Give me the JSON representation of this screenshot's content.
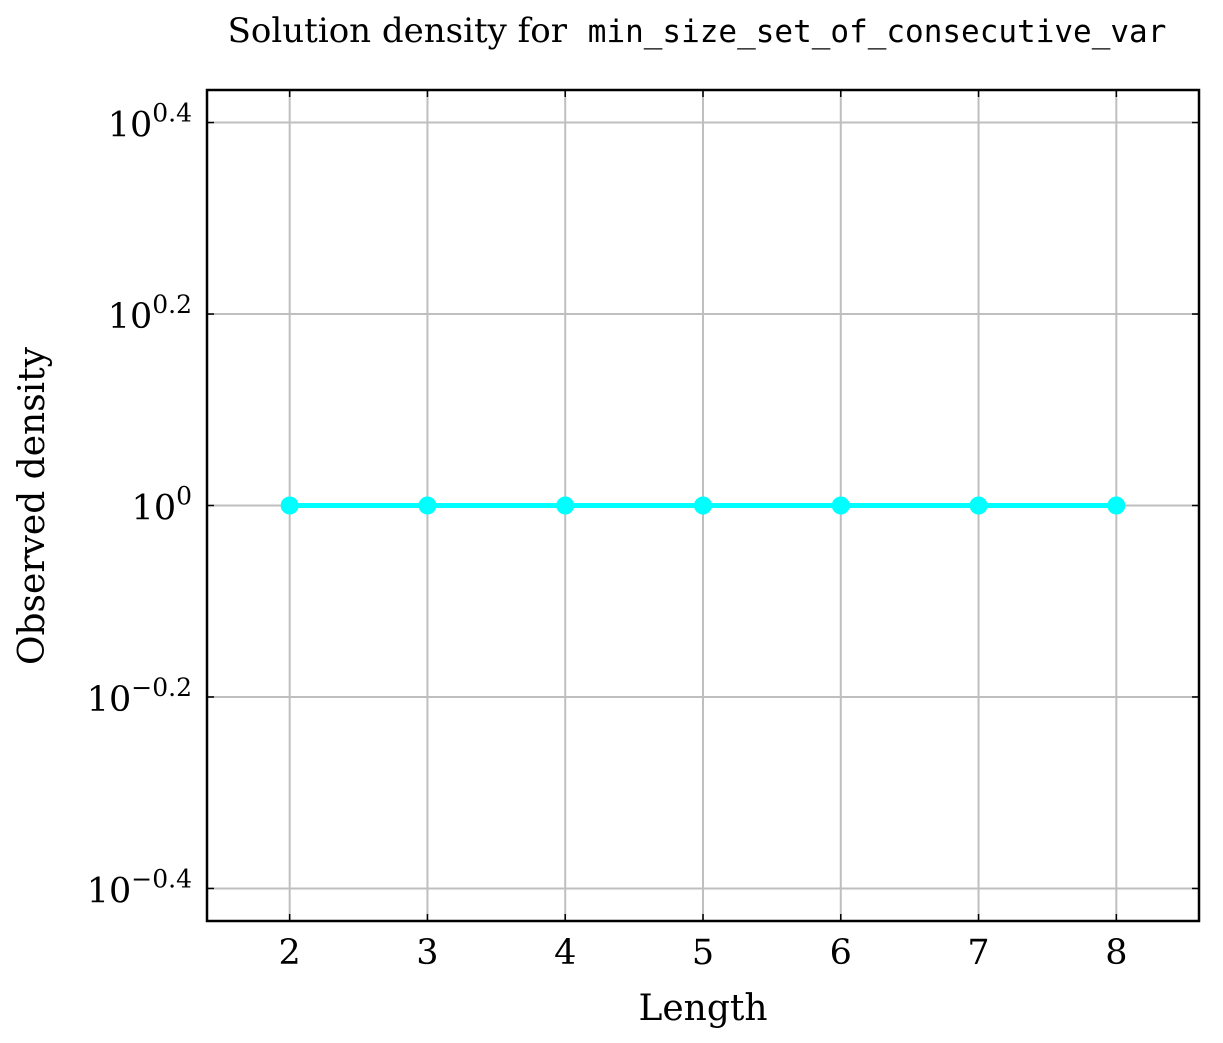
{
  "chart_data": {
    "type": "line",
    "title_prefix": "Solution density for",
    "title_code": "min_size_set_of_consecutive_var",
    "xlabel": "Length",
    "ylabel": "Observed density",
    "x": [
      2,
      3,
      4,
      5,
      6,
      7,
      8
    ],
    "series": [
      {
        "values": [
          1,
          1,
          1,
          1,
          1,
          1,
          1
        ],
        "color": "#00ffff"
      }
    ],
    "xlim": [
      1.4,
      8.6
    ],
    "ylim_log10": [
      -0.434,
      0.434
    ],
    "y_scale": "log",
    "x_ticks": [
      "2",
      "3",
      "4",
      "5",
      "6",
      "7",
      "8"
    ],
    "y_ticks": [
      {
        "base": "10",
        "exp": "0.4",
        "value_log10": 0.4
      },
      {
        "base": "10",
        "exp": "0.2",
        "value_log10": 0.2
      },
      {
        "base": "10",
        "exp": "0",
        "value_log10": 0
      },
      {
        "base": "10",
        "exp": "−0.2",
        "value_log10": -0.2
      },
      {
        "base": "10",
        "exp": "−0.4",
        "value_log10": -0.4
      }
    ],
    "grid": true,
    "grid_color": "#bfbfbf"
  }
}
